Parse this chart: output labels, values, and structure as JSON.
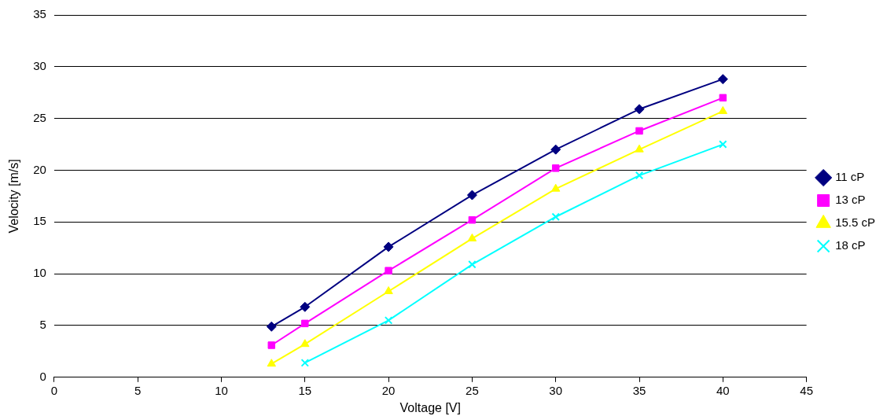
{
  "chart_data": {
    "type": "line",
    "xlabel": "Voltage [V]",
    "ylabel": "Velocity [m/s]",
    "xlim": [
      0,
      45
    ],
    "xticks": [
      0,
      5,
      10,
      15,
      20,
      25,
      30,
      35,
      40,
      45
    ],
    "ylim": [
      0,
      35
    ],
    "yticks": [
      0,
      5,
      10,
      15,
      20,
      25,
      30,
      35
    ],
    "grid": "y",
    "legend": "right",
    "line_style": "solid",
    "series": [
      {
        "name": "11 cP",
        "color": "#000080",
        "marker": "diamond",
        "x": [
          13,
          15,
          20,
          25,
          30,
          35,
          40
        ],
        "values": [
          4.9,
          6.8,
          12.6,
          17.6,
          22.0,
          25.9,
          28.8
        ]
      },
      {
        "name": "13 cP",
        "color": "#ff00ff",
        "marker": "square",
        "x": [
          13,
          15,
          20,
          25,
          30,
          35,
          40
        ],
        "values": [
          3.1,
          5.2,
          10.3,
          15.2,
          20.2,
          23.8,
          27.0
        ]
      },
      {
        "name": "15.5 cP",
        "color": "#ffff00",
        "marker": "triangle",
        "x": [
          13,
          15,
          20,
          25,
          30,
          35,
          40
        ],
        "values": [
          1.3,
          3.2,
          8.3,
          13.4,
          18.2,
          22.0,
          25.7
        ]
      },
      {
        "name": "18 cP",
        "color": "#00ffff",
        "marker": "cross",
        "x": [
          15,
          20,
          25,
          30,
          35,
          40
        ],
        "values": [
          1.4,
          5.5,
          10.9,
          15.5,
          19.5,
          22.5
        ]
      }
    ]
  }
}
